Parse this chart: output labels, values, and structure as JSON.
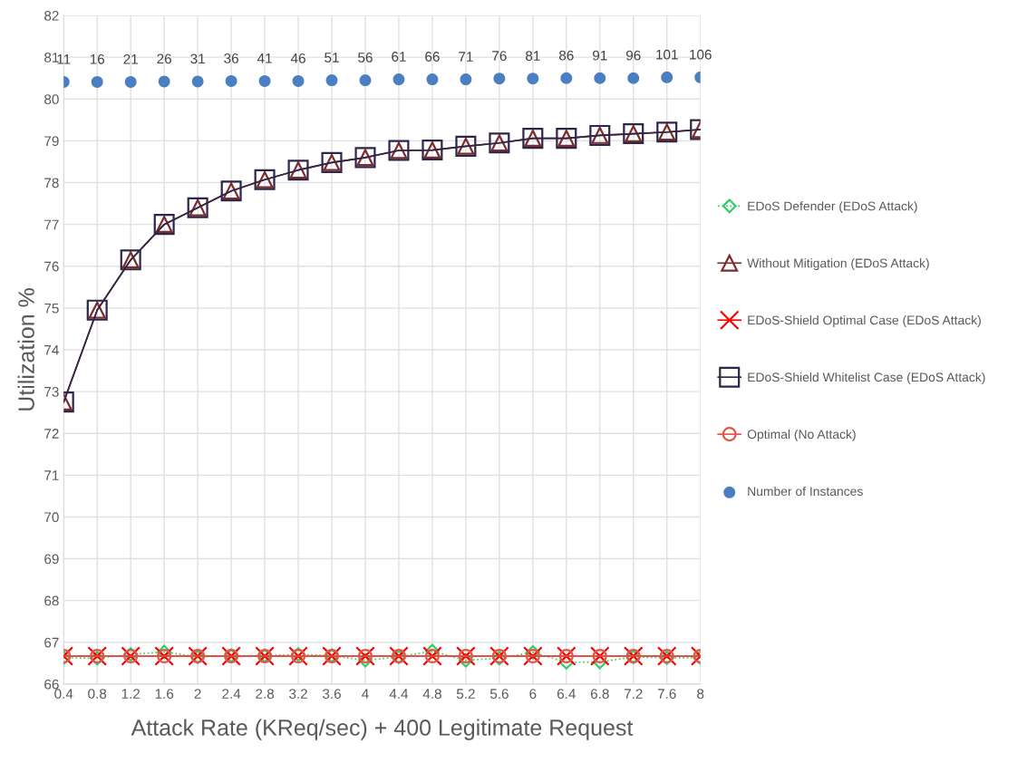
{
  "chart_data": {
    "type": "line",
    "xlabel": "Attack Rate (KReq/sec) + 400 Legitimate Request",
    "ylabel": "Utilization %",
    "categories": [
      "0.4",
      "0.8",
      "1.2",
      "1.6",
      "2",
      "2.4",
      "2.8",
      "3.2",
      "3.6",
      "4",
      "4.4",
      "4.8",
      "5.2",
      "5.6",
      "6",
      "6.4",
      "6.8",
      "7.2",
      "7.6",
      "8"
    ],
    "ylim": [
      66,
      82
    ],
    "yticks": [
      66,
      67,
      68,
      69,
      70,
      71,
      72,
      73,
      74,
      75,
      76,
      77,
      78,
      79,
      80,
      81,
      82
    ],
    "grid": true,
    "legend": "right",
    "series": [
      {
        "name": "EDoS Defender (EDoS Attack)",
        "color": "#33cc66",
        "marker": "diamond",
        "line_style": "dotted",
        "values": [
          66.63,
          66.62,
          66.71,
          66.77,
          66.65,
          66.68,
          66.68,
          66.71,
          66.68,
          66.57,
          66.65,
          66.79,
          66.57,
          66.62,
          66.76,
          66.52,
          66.53,
          66.65,
          66.63,
          66.63
        ]
      },
      {
        "name": "Without Mitigation (EDoS Attack)",
        "color": "#7b2c2c",
        "marker": "triangle",
        "line_style": "solid",
        "values": [
          72.75,
          74.95,
          76.15,
          77.0,
          77.4,
          77.8,
          78.07,
          78.3,
          78.48,
          78.6,
          78.77,
          78.78,
          78.87,
          78.95,
          79.06,
          79.06,
          79.13,
          79.17,
          79.21,
          79.27
        ]
      },
      {
        "name": "EDoS-Shield Optimal Case (EDoS Attack)",
        "color": "#ff0000",
        "marker": "cross",
        "line_style": "solid",
        "values": [
          66.67,
          66.67,
          66.67,
          66.67,
          66.67,
          66.67,
          66.67,
          66.67,
          66.67,
          66.67,
          66.67,
          66.67,
          66.67,
          66.67,
          66.67,
          66.67,
          66.67,
          66.67,
          66.67,
          66.67
        ]
      },
      {
        "name": "EDoS-Shield Whitelist Case (EDoS Attack)",
        "color": "#2e2548",
        "marker": "square",
        "line_style": "solid",
        "values": [
          72.75,
          74.95,
          76.15,
          77.0,
          77.4,
          77.8,
          78.07,
          78.3,
          78.48,
          78.6,
          78.77,
          78.78,
          78.87,
          78.95,
          79.06,
          79.06,
          79.13,
          79.17,
          79.21,
          79.27
        ]
      },
      {
        "name": "Optimal (No Attack)",
        "color": "#e0554a",
        "marker": "circle",
        "line_style": "solid",
        "values": [
          66.67,
          66.67,
          66.67,
          66.67,
          66.67,
          66.67,
          66.67,
          66.67,
          66.67,
          66.67,
          66.67,
          66.67,
          66.67,
          66.67,
          66.67,
          66.67,
          66.67,
          66.67,
          66.67,
          66.67
        ]
      },
      {
        "name": "Number of Instances",
        "type": "scatter",
        "color": "#4a7fc1",
        "marker": "circle",
        "values": [
          80.41,
          80.41,
          80.41,
          80.42,
          80.42,
          80.43,
          80.43,
          80.43,
          80.45,
          80.45,
          80.47,
          80.47,
          80.47,
          80.49,
          80.49,
          80.5,
          80.5,
          80.5,
          80.52,
          80.52
        ]
      }
    ],
    "annotations": [
      {
        "text": "11",
        "x": "0.4",
        "y": 80.41
      },
      {
        "text": "16",
        "x": "0.8",
        "y": 80.41
      },
      {
        "text": "21",
        "x": "1.2",
        "y": 80.41
      },
      {
        "text": "26",
        "x": "1.6",
        "y": 80.42
      },
      {
        "text": "31",
        "x": "2",
        "y": 80.42
      },
      {
        "text": "36",
        "x": "2.4",
        "y": 80.43
      },
      {
        "text": "41",
        "x": "2.8",
        "y": 80.43
      },
      {
        "text": "46",
        "x": "3.2",
        "y": 80.43
      },
      {
        "text": "51",
        "x": "3.6",
        "y": 80.45
      },
      {
        "text": "56",
        "x": "4",
        "y": 80.45
      },
      {
        "text": "61",
        "x": "4.4",
        "y": 80.47
      },
      {
        "text": "66",
        "x": "4.8",
        "y": 80.47
      },
      {
        "text": "71",
        "x": "5.2",
        "y": 80.47
      },
      {
        "text": "76",
        "x": "5.6",
        "y": 80.49
      },
      {
        "text": "81",
        "x": "6",
        "y": 80.49
      },
      {
        "text": "86",
        "x": "6.4",
        "y": 80.5
      },
      {
        "text": "91",
        "x": "6.8",
        "y": 80.5
      },
      {
        "text": "96",
        "x": "7.2",
        "y": 80.5
      },
      {
        "text": "101",
        "x": "7.6",
        "y": 80.52
      },
      {
        "text": "106",
        "x": "8",
        "y": 80.52
      }
    ]
  }
}
